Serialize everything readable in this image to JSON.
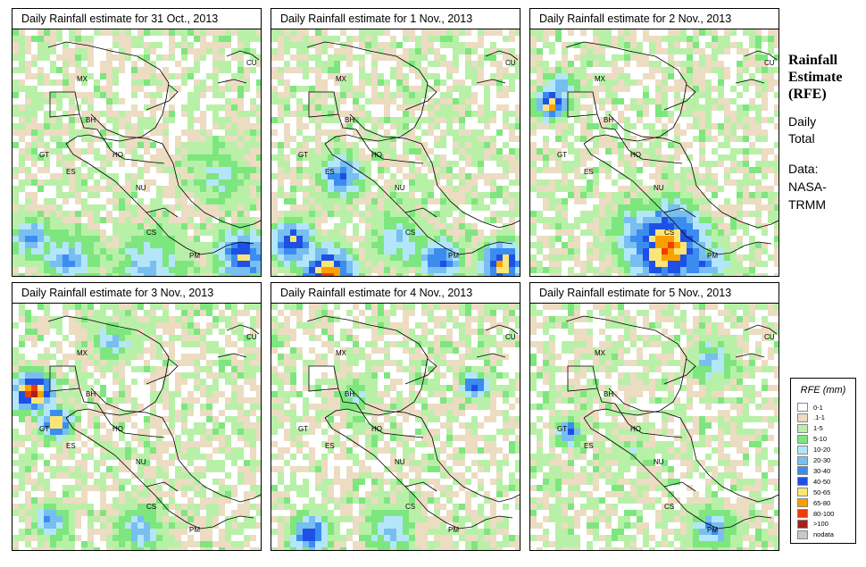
{
  "panels": [
    {
      "title": "Daily Rainfall estimate for  31 Oct., 2013",
      "seed": 11,
      "profile": "oct31"
    },
    {
      "title": "Daily Rainfall estimate for  1 Nov., 2013",
      "seed": 23,
      "profile": "nov1"
    },
    {
      "title": "Daily Rainfall estimate for  2 Nov., 2013",
      "seed": 37,
      "profile": "nov2"
    },
    {
      "title": "Daily Rainfall estimate for  3 Nov., 2013",
      "seed": 41,
      "profile": "nov3"
    },
    {
      "title": "Daily Rainfall estimate for  4 Nov., 2013",
      "seed": 53,
      "profile": "nov4"
    },
    {
      "title": "Daily Rainfall estimate for  5 Nov., 2013",
      "seed": 67,
      "profile": "nov5"
    }
  ],
  "region_labels": [
    "CU",
    "MX",
    "BH",
    "GT",
    "HO",
    "ES",
    "NU",
    "CS",
    "PM"
  ],
  "sidebar": {
    "title_line1": "Rainfall",
    "title_line2": "Estimate",
    "title_line3": "(RFE)",
    "subtitle_line1": "Daily",
    "subtitle_line2": "Total",
    "source_line1": "Data:",
    "source_line2": "NASA-",
    "source_line3": "TRMM"
  },
  "legend": {
    "title": "RFE (mm)",
    "entries": [
      {
        "label": "0-1",
        "color": "#ffffff"
      },
      {
        "label": ".1-1",
        "color": "#ecdcc2"
      },
      {
        "label": "1-5",
        "color": "#b8f0a8"
      },
      {
        "label": "5-10",
        "color": "#7ee67e"
      },
      {
        "label": "10-20",
        "color": "#b4e6fa"
      },
      {
        "label": "20-30",
        "color": "#78bef0"
      },
      {
        "label": "30-40",
        "color": "#3c8cf0"
      },
      {
        "label": "40-50",
        "color": "#1e50e6"
      },
      {
        "label": "50-65",
        "color": "#fae678"
      },
      {
        "label": "65-80",
        "color": "#faa000"
      },
      {
        "label": "80-100",
        "color": "#f03c00"
      },
      {
        "label": ">100",
        "color": "#aa1e1e"
      },
      {
        "label": "nodata",
        "color": "#c8c8c8"
      }
    ]
  }
}
